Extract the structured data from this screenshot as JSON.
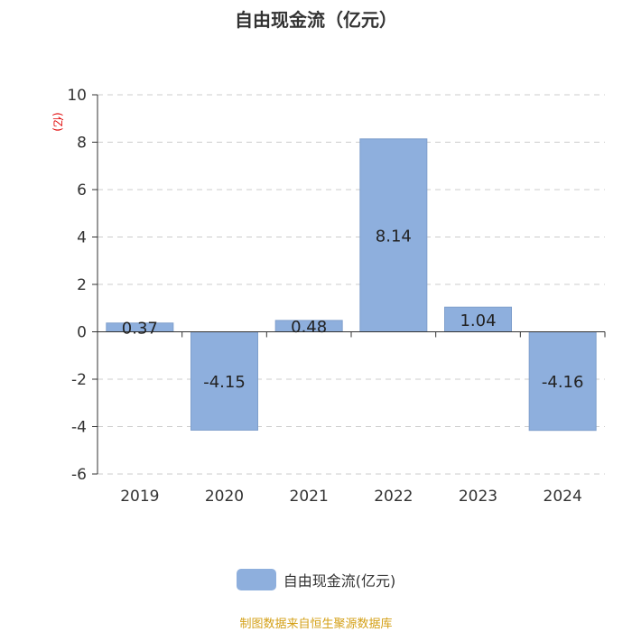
{
  "chart_data": {
    "type": "bar",
    "title": "自由现金流（亿元）",
    "ylabel": "(亿)",
    "categories": [
      "2019",
      "2020",
      "2021",
      "2022",
      "2023",
      "2024"
    ],
    "series": [
      {
        "name": "自由现金流(亿元)",
        "values": [
          0.37,
          -4.15,
          0.48,
          8.14,
          1.04,
          -4.16
        ]
      }
    ],
    "data_labels": [
      "0.37",
      "-4.15",
      "0.48",
      "8.14",
      "1.04",
      "-4.16"
    ],
    "ylim": [
      -6,
      10
    ],
    "yticks": [
      10,
      8,
      6,
      4,
      2,
      0,
      -2,
      -4,
      -6
    ],
    "grid": true,
    "legend_position": "bottom"
  },
  "colors": {
    "bar": "#8eafdd",
    "bar_stroke": "#7f9fcc",
    "ylabel": "#e00000",
    "watermark": "#d4a017",
    "grid": "#cccccc",
    "axis": "#333333"
  },
  "footer": {
    "watermark": "制图数据来自恒生聚源数据库"
  }
}
